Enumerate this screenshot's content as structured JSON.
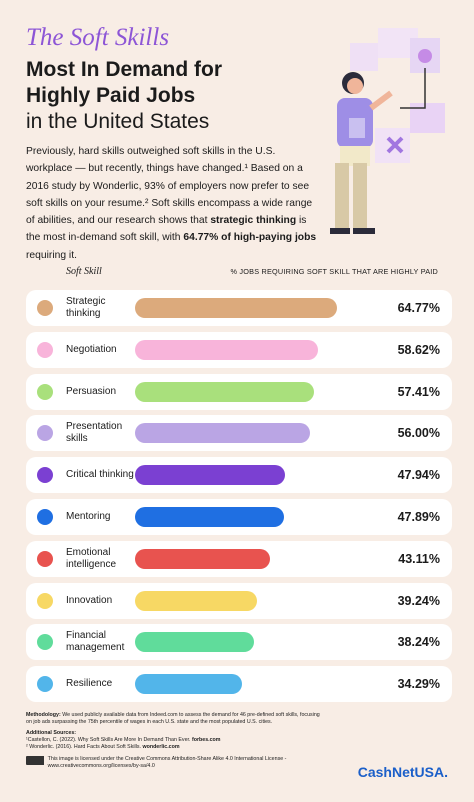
{
  "header": {
    "script_title": "The Soft Skills",
    "title_line1": "Most In Demand for",
    "title_line2": "Highly Paid Jobs",
    "title_line3": "in the United States"
  },
  "intro": {
    "part1": "Previously, hard skills outweighed soft skills in the U.S. workplace — but recently, things have changed.¹ Based on a 2016 study by Wonderlic, 93% of employers now prefer to see soft skills on your resume.² Soft skills encompass a wide range of abilities, and our research shows that ",
    "bold1": "strategic thinking",
    "part2": " is the most in-demand soft skill, with ",
    "bold2": "64.77% of high-paying jobs",
    "part3": " requiring it."
  },
  "chart_data": {
    "type": "bar",
    "category_header": "Soft Skill",
    "value_header": "% JOBS REQUIRING SOFT SKILL THAT ARE HIGHLY PAID",
    "categories": [
      "Strategic thinking",
      "Negotiation",
      "Persuasion",
      "Presentation skills",
      "Critical thinking",
      "Mentoring",
      "Emotional intelligence",
      "Innovation",
      "Financial management",
      "Resilience"
    ],
    "values": [
      64.77,
      58.62,
      57.41,
      56.0,
      47.94,
      47.89,
      43.11,
      39.24,
      38.24,
      34.29
    ],
    "value_labels": [
      "64.77%",
      "58.62%",
      "57.41%",
      "56.00%",
      "47.94%",
      "47.89%",
      "43.11%",
      "39.24%",
      "38.24%",
      "34.29%"
    ],
    "colors": [
      "#dcaa7c",
      "#f8b4da",
      "#a9e07c",
      "#baa5e4",
      "#7b40d2",
      "#1f6fe2",
      "#e8534f",
      "#f7d864",
      "#60dc9b",
      "#52b5ea"
    ]
  },
  "footer": {
    "methodology_label": "Methodology:",
    "methodology": "We used publicly available data from Indeed.com to assess the demand for 46 pre-defined soft skills, focusing on job ads surpassing the 75th percentile of wages in each U.S. state and the most populated U.S. cities.",
    "sources_label": "Additional Sources:",
    "source1": "¹Castellon, C. (2022). Why Soft Skills Are More In Demand Than Ever. ",
    "source1_site": "forbes.com",
    "source2": "² Wonderlic. (2016). Hard Facts About Soft Skills. ",
    "source2_site": "wonderlic.com",
    "license": "This image is licensed under the Creative Commons Attribution-Share Alike 4.0 International License - www.creativecommons.org/licenses/by-sa/4.0",
    "logo": "CashNetUSA."
  }
}
